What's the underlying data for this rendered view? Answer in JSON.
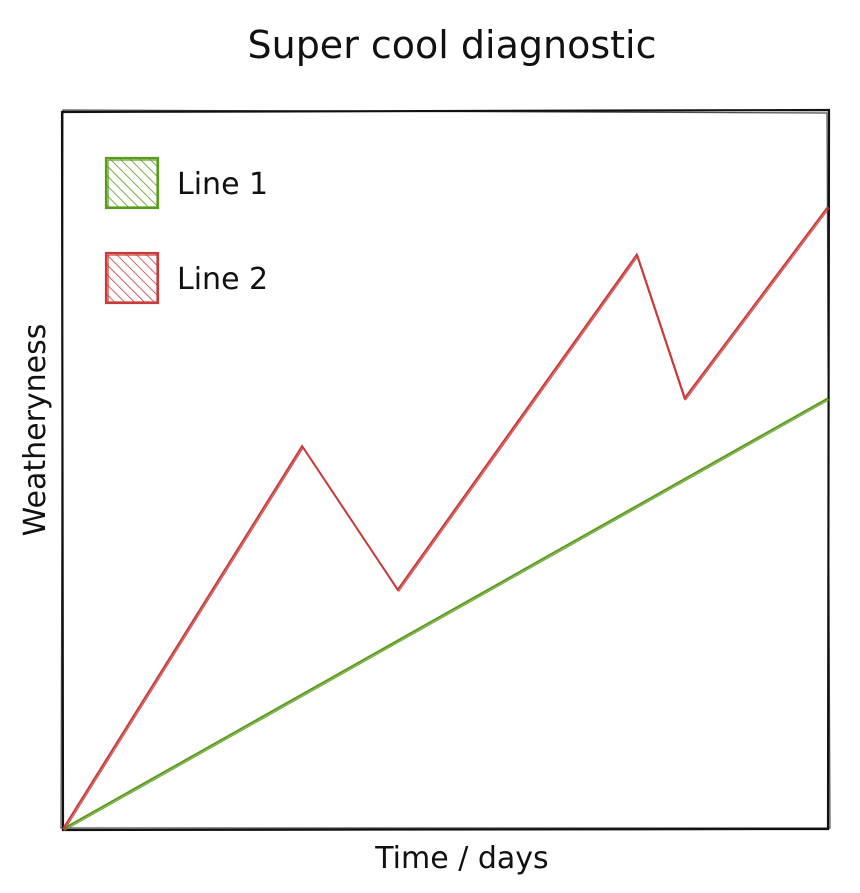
{
  "chart_data": {
    "type": "line",
    "title": "Super cool diagnostic",
    "xlabel": "Time / days",
    "ylabel": "Weatheryness",
    "xlim": [
      0,
      8
    ],
    "ylim": [
      0,
      7.5
    ],
    "grid": false,
    "legend_position": "top-left",
    "series": [
      {
        "name": "Line 1",
        "color": "#5a9a1c",
        "x": [
          0,
          8
        ],
        "y": [
          0,
          4.5
        ]
      },
      {
        "name": "Line 2",
        "color": "#c93a3a",
        "x": [
          0,
          2.5,
          3.5,
          6,
          6.5,
          8
        ],
        "y": [
          0,
          4,
          2.5,
          6,
          4.5,
          6.5
        ]
      }
    ]
  }
}
